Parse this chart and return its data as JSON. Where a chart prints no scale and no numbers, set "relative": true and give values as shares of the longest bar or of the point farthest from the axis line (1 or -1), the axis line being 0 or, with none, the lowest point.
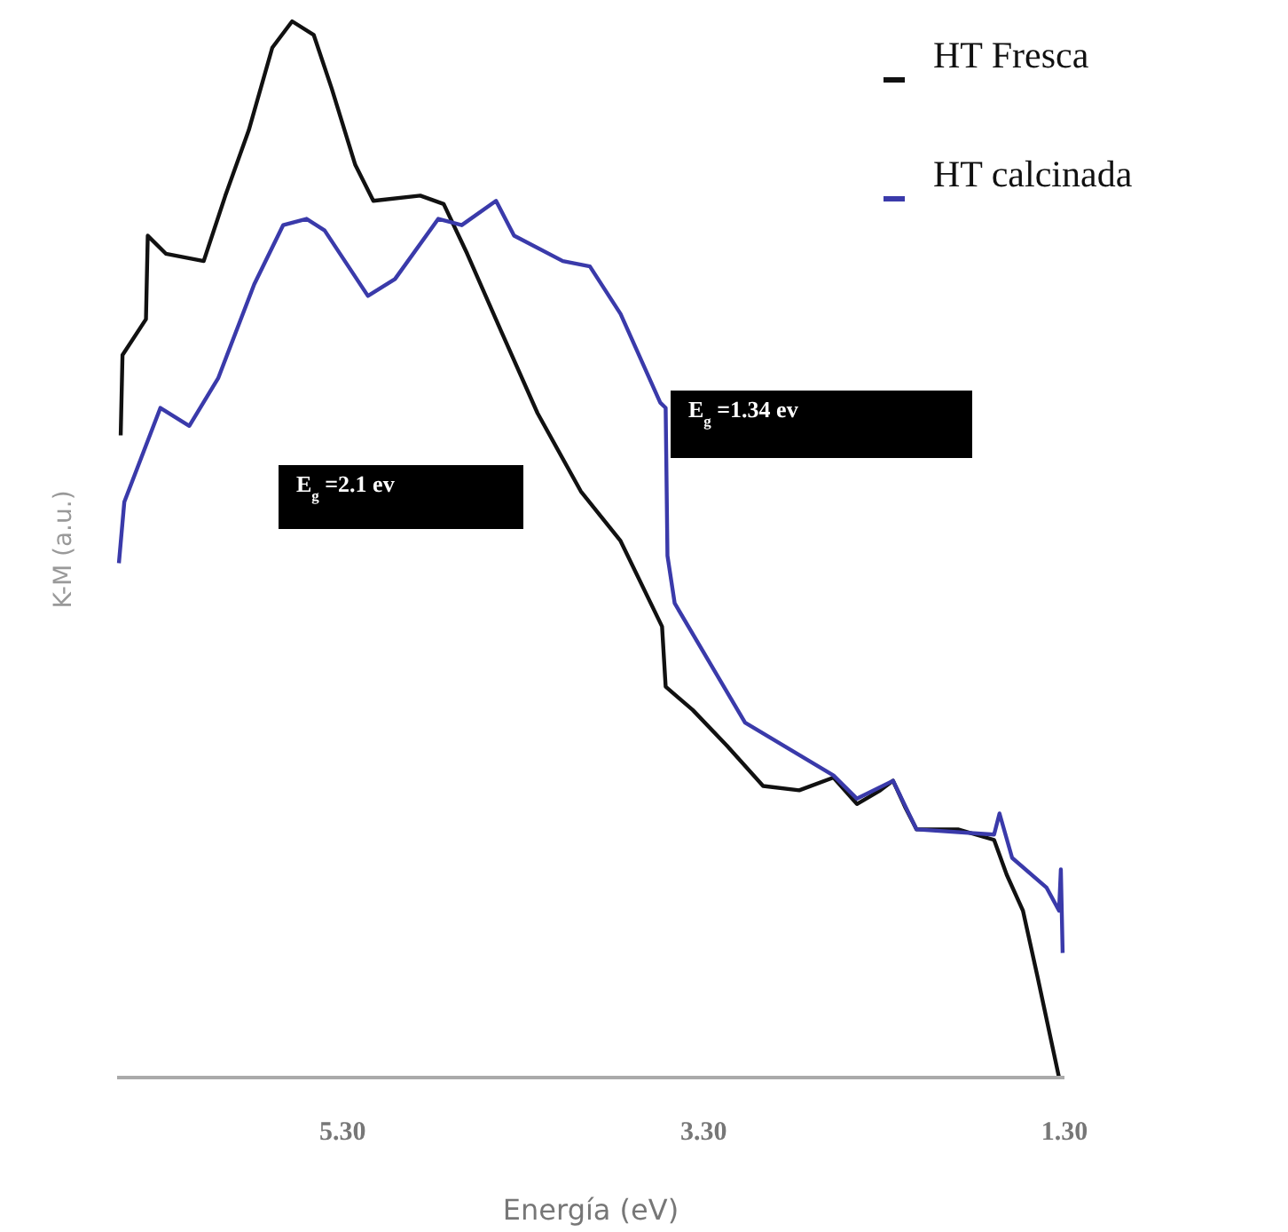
{
  "chart_data": {
    "type": "line",
    "relative": true,
    "xlabel": "Energía (eV)",
    "ylabel": "K-M (a.u.)",
    "xlim": [
      6.55,
      1.3
    ],
    "xticks": [
      {
        "value": 5.3,
        "label": "5.30"
      },
      {
        "value": 3.3,
        "label": "3.30"
      },
      {
        "value": 1.3,
        "label": "1.30"
      }
    ],
    "grid": false,
    "legend": "top right",
    "marker": "none",
    "line_style": "solid",
    "annotations": [
      "E$_{g}$ =2.1 ev",
      "E$_{g}$ =1.34 ev"
    ],
    "series": [
      {
        "name": "HT Fresca",
        "color": "#111111",
        "x": [
          6.53,
          6.52,
          6.39,
          6.38,
          6.28,
          6.07,
          5.95,
          5.82,
          5.69,
          5.58,
          5.46,
          5.36,
          5.23,
          5.13,
          4.87,
          4.74,
          4.61,
          4.42,
          4.22,
          3.98,
          3.76,
          3.53,
          3.51,
          3.36,
          3.17,
          2.97,
          2.77,
          2.58,
          2.45,
          2.32,
          2.25,
          2.18,
          2.12,
          1.89,
          1.69,
          1.62,
          1.53,
          1.45,
          1.33
        ],
        "values": [
          0.608,
          0.684,
          0.718,
          0.797,
          0.78,
          0.773,
          0.835,
          0.897,
          0.975,
          1,
          0.987,
          0.936,
          0.864,
          0.83,
          0.835,
          0.827,
          0.78,
          0.706,
          0.629,
          0.555,
          0.508,
          0.427,
          0.37,
          0.348,
          0.314,
          0.276,
          0.272,
          0.284,
          0.259,
          0.272,
          0.281,
          0.255,
          0.235,
          0.235,
          0.225,
          0.192,
          0.158,
          0.096,
          0
        ]
      },
      {
        "name": "HT calcinada",
        "color": "#3a3aaa",
        "x": [
          6.54,
          6.51,
          6.31,
          6.15,
          5.99,
          5.79,
          5.63,
          5.5,
          5.4,
          5.16,
          5.01,
          4.77,
          4.64,
          4.45,
          4.35,
          4.08,
          3.93,
          3.76,
          3.54,
          3.51,
          3.5,
          3.46,
          3.07,
          2.58,
          2.45,
          2.25,
          2.12,
          1.69,
          1.66,
          1.59,
          1.4,
          1.33,
          1.32,
          1.31
        ],
        "values": [
          0.487,
          0.545,
          0.634,
          0.617,
          0.662,
          0.751,
          0.807,
          0.813,
          0.802,
          0.74,
          0.756,
          0.813,
          0.807,
          0.83,
          0.797,
          0.773,
          0.768,
          0.723,
          0.639,
          0.634,
          0.494,
          0.449,
          0.336,
          0.286,
          0.264,
          0.281,
          0.235,
          0.23,
          0.25,
          0.208,
          0.18,
          0.158,
          0.197,
          0.118
        ]
      }
    ]
  }
}
